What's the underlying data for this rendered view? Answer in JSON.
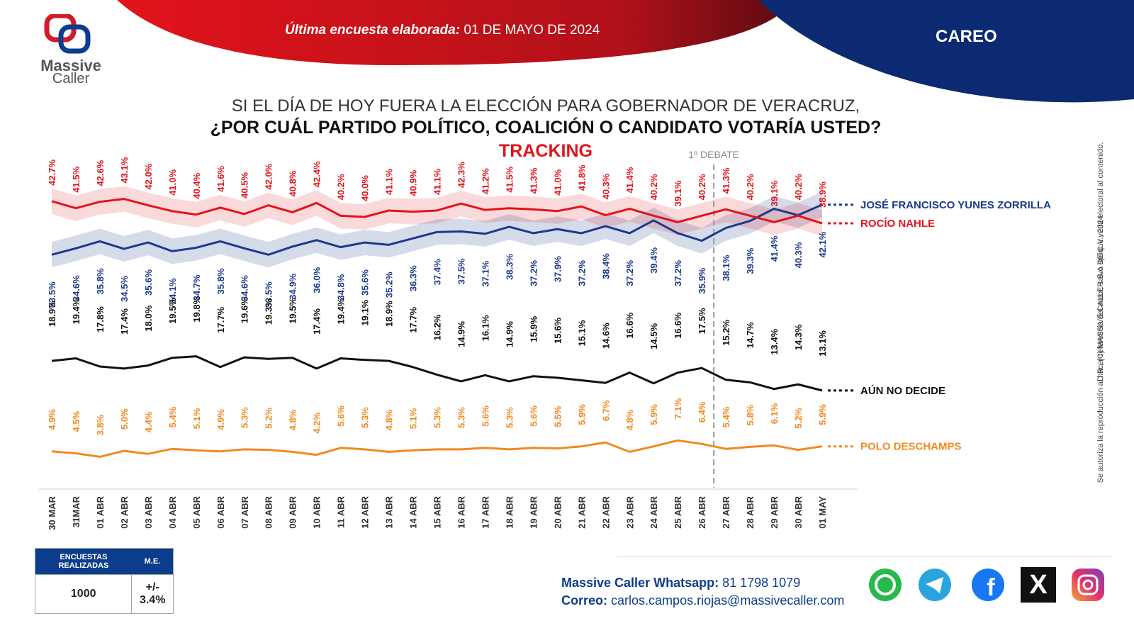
{
  "brand": {
    "line1": "Massive",
    "line2": "Caller"
  },
  "header": {
    "survey_label": "Última encuesta elaborada:",
    "survey_date": "01 DE MAYO DE 2024",
    "careo": "CAREO"
  },
  "question": {
    "line1": "SI EL DÍA DE HOY FUERA LA ELECCIÓN PARA GOBERNADOR DE VERACRUZ,",
    "line2": "¿POR CUÁL PARTIDO POLÍTICO, COALICIÓN O CANDIDATO  VOTARÍA USTED?",
    "line3": "TRACKING"
  },
  "chart_data": {
    "type": "line",
    "categories": [
      "30 MAR",
      "31MAR",
      "01 ABR",
      "02 ABR",
      "03 ABR",
      "04 ABR",
      "05 ABR",
      "06 ABR",
      "07 ABR",
      "08 ABR",
      "09 ABR",
      "10 ABR",
      "11 ABR",
      "12 ABR",
      "13 ABR",
      "14 ABR",
      "15 ABR",
      "16 ABR",
      "17 ABR",
      "18 ABR",
      "19 ABR",
      "20 ABR",
      "21 ABR",
      "22 ABR",
      "23 ABR",
      "24 ABR",
      "25 ABR",
      "26 ABR",
      "27 ABR",
      "28 ABR",
      "29 ABR",
      "30 ABR",
      "01 MAY"
    ],
    "annotation": "1º DEBATE",
    "annotation_after_category": "26 ABR",
    "series": [
      {
        "name": "JOSÉ FRANCISCO YUNES ZORRILLA",
        "color": "#1c3a8c",
        "values": [
          33.5,
          34.6,
          35.8,
          34.5,
          35.6,
          34.1,
          34.7,
          35.8,
          34.6,
          33.5,
          34.9,
          36.0,
          34.8,
          35.6,
          35.2,
          36.3,
          37.4,
          37.5,
          37.1,
          38.3,
          37.2,
          37.9,
          37.2,
          38.4,
          37.2,
          39.4,
          37.2,
          35.9,
          38.1,
          39.3,
          41.4,
          40.3,
          42.1
        ]
      },
      {
        "name": "ROCÍO NAHLE",
        "color": "#e3131b",
        "values": [
          42.7,
          41.5,
          42.6,
          43.1,
          42.0,
          41.0,
          40.4,
          41.6,
          40.5,
          42.0,
          40.8,
          42.4,
          40.2,
          40.0,
          41.1,
          40.9,
          41.1,
          42.3,
          41.2,
          41.5,
          41.3,
          41.0,
          41.8,
          40.3,
          41.4,
          40.2,
          39.1,
          40.2,
          41.3,
          40.2,
          39.1,
          40.2,
          38.9
        ]
      },
      {
        "name": "AÚN NO DECIDE",
        "color": "#111111",
        "values": [
          18.9,
          19.4,
          17.8,
          17.4,
          18.0,
          19.5,
          19.8,
          17.7,
          19.6,
          19.3,
          19.5,
          17.4,
          19.4,
          19.1,
          18.9,
          17.7,
          16.2,
          14.9,
          16.1,
          14.9,
          15.9,
          15.6,
          15.1,
          14.6,
          16.6,
          14.5,
          16.6,
          17.5,
          15.2,
          14.7,
          13.4,
          14.3,
          13.1
        ]
      },
      {
        "name": "POLO DESCHAMPS",
        "color": "#f28a1f",
        "values": [
          4.9,
          4.5,
          3.8,
          5.0,
          4.4,
          5.4,
          5.1,
          4.9,
          5.3,
          5.2,
          4.8,
          4.2,
          5.6,
          5.3,
          4.8,
          5.1,
          5.3,
          5.3,
          5.6,
          5.3,
          5.6,
          5.5,
          5.9,
          6.7,
          4.8,
          5.9,
          7.1,
          6.4,
          5.4,
          5.8,
          6.1,
          5.2,
          5.9
        ]
      }
    ],
    "label_format": "%"
  },
  "table": {
    "header_encuestas": "ENCUESTAS REALIZADAS",
    "header_me": "M.E.",
    "encuestas": "1000",
    "me": "+/- 3.4%"
  },
  "contact": {
    "whatsapp_label": "Massive Caller Whatsapp:",
    "whatsapp_number": "81 1798  1079",
    "email_label": "Correo:",
    "email": "carlos.campos.riojas@massivecaller.com"
  },
  "copyright_line1": "D.R., (C) MASSIVE CALLER S.A DE C.V., 2024",
  "copyright_line2": "Se autoriza la reproducción al hacer referencia del autor, salvo aplique veda electoral al contenido.",
  "social_icons": [
    "whatsapp-icon",
    "telegram-icon",
    "facebook-icon",
    "x-icon",
    "instagram-icon"
  ]
}
